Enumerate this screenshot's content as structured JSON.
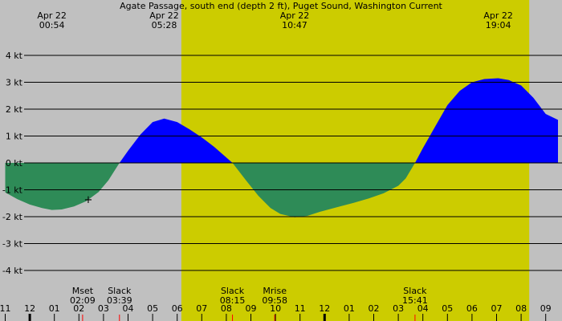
{
  "chart_data": {
    "type": "area",
    "title": "Agate Passage, south end (depth 2 ft), Puget Sound, Washington Current",
    "ylabel": "",
    "xlabel": "",
    "y_unit": "kt",
    "ylim": [
      -4.5,
      4.5
    ],
    "y_ticks": [
      {
        "value": 4,
        "label": "4 kt"
      },
      {
        "value": 3,
        "label": "3 kt"
      },
      {
        "value": 2,
        "label": "2 kt"
      },
      {
        "value": 1,
        "label": "1 kt"
      },
      {
        "value": 0,
        "label": "0 kt"
      },
      {
        "value": -1,
        "label": "-1 kt"
      },
      {
        "value": -2,
        "label": "-2 kt"
      },
      {
        "value": -3,
        "label": "-3 kt"
      },
      {
        "value": -4,
        "label": "-4 kt"
      }
    ],
    "xlim_hours": [
      -1.0,
      33.0
    ],
    "daylight_hours": [
      6.17,
      20.33
    ],
    "top_events": [
      {
        "date": "Apr 22",
        "time": "00:54",
        "hour": 0.9
      },
      {
        "date": "Apr 22",
        "time": "05:28",
        "hour": 5.47
      },
      {
        "date": "Apr 22",
        "time": "10:47",
        "hour": 10.78
      },
      {
        "date": "Apr 22",
        "time": "19:04",
        "hour": 19.07
      }
    ],
    "bottom_events": [
      {
        "label": "Mset",
        "time": "02:09",
        "hour": 2.15,
        "marker": true
      },
      {
        "label": "Slack",
        "time": "03:39",
        "hour": 3.65,
        "marker": true
      },
      {
        "label": "Slack",
        "time": "08:15",
        "hour": 8.25,
        "marker": true
      },
      {
        "label": "Mrise",
        "time": "09:58",
        "hour": 9.97,
        "marker": true
      },
      {
        "label": "Slack",
        "time": "15:41",
        "hour": 15.68,
        "marker": true
      }
    ],
    "hour_ticks": [
      {
        "label": "11",
        "hour": -1
      },
      {
        "label": "12",
        "hour": 0,
        "bold": true
      },
      {
        "label": "01",
        "hour": 1
      },
      {
        "label": "02",
        "hour": 2
      },
      {
        "label": "03",
        "hour": 3
      },
      {
        "label": "04",
        "hour": 4
      },
      {
        "label": "05",
        "hour": 5
      },
      {
        "label": "06",
        "hour": 6
      },
      {
        "label": "07",
        "hour": 7
      },
      {
        "label": "08",
        "hour": 8
      },
      {
        "label": "09",
        "hour": 9
      },
      {
        "label": "10",
        "hour": 10
      },
      {
        "label": "11",
        "hour": 11
      },
      {
        "label": "12",
        "hour": 12,
        "bold": true
      },
      {
        "label": "01",
        "hour": 13
      },
      {
        "label": "02",
        "hour": 14
      },
      {
        "label": "03",
        "hour": 15
      },
      {
        "label": "04",
        "hour": 16
      },
      {
        "label": "05",
        "hour": 17
      },
      {
        "label": "06",
        "hour": 18
      },
      {
        "label": "07",
        "hour": 19
      },
      {
        "label": "08",
        "hour": 20
      },
      {
        "label": "09",
        "hour": 21
      }
    ],
    "series": [
      {
        "x": [
          -1.0,
          -0.5,
          0.0,
          0.5,
          0.9,
          1.3,
          1.8,
          2.3,
          2.8,
          3.2,
          3.65,
          4.0,
          4.5,
          5.0,
          5.47,
          6.0,
          6.5,
          7.0,
          7.5,
          8.25,
          8.8,
          9.3,
          9.8,
          10.2,
          10.78,
          11.3,
          11.8,
          12.5,
          13.2,
          13.8,
          14.4,
          15.0,
          15.3,
          15.68,
          16.0,
          16.5,
          17.0,
          17.5,
          18.0,
          18.5,
          19.07,
          19.5,
          20.0,
          20.5,
          21.0,
          21.5
        ],
        "y": [
          -1.1,
          -1.35,
          -1.55,
          -1.68,
          -1.75,
          -1.73,
          -1.62,
          -1.42,
          -1.08,
          -0.65,
          0.0,
          0.45,
          1.05,
          1.52,
          1.65,
          1.52,
          1.25,
          0.95,
          0.6,
          0.0,
          -0.65,
          -1.22,
          -1.68,
          -1.9,
          -2.02,
          -1.97,
          -1.82,
          -1.65,
          -1.48,
          -1.32,
          -1.13,
          -0.85,
          -0.58,
          0.0,
          0.55,
          1.35,
          2.15,
          2.68,
          3.0,
          3.12,
          3.15,
          3.08,
          2.88,
          2.42,
          1.82,
          1.6
        ]
      }
    ],
    "colors": {
      "background": "#c0c0c0",
      "daylight": "#cccc00",
      "flood": "#0000ff",
      "ebb": "#2e8b57",
      "grid": "#000000",
      "marker": "#ff0000"
    }
  }
}
